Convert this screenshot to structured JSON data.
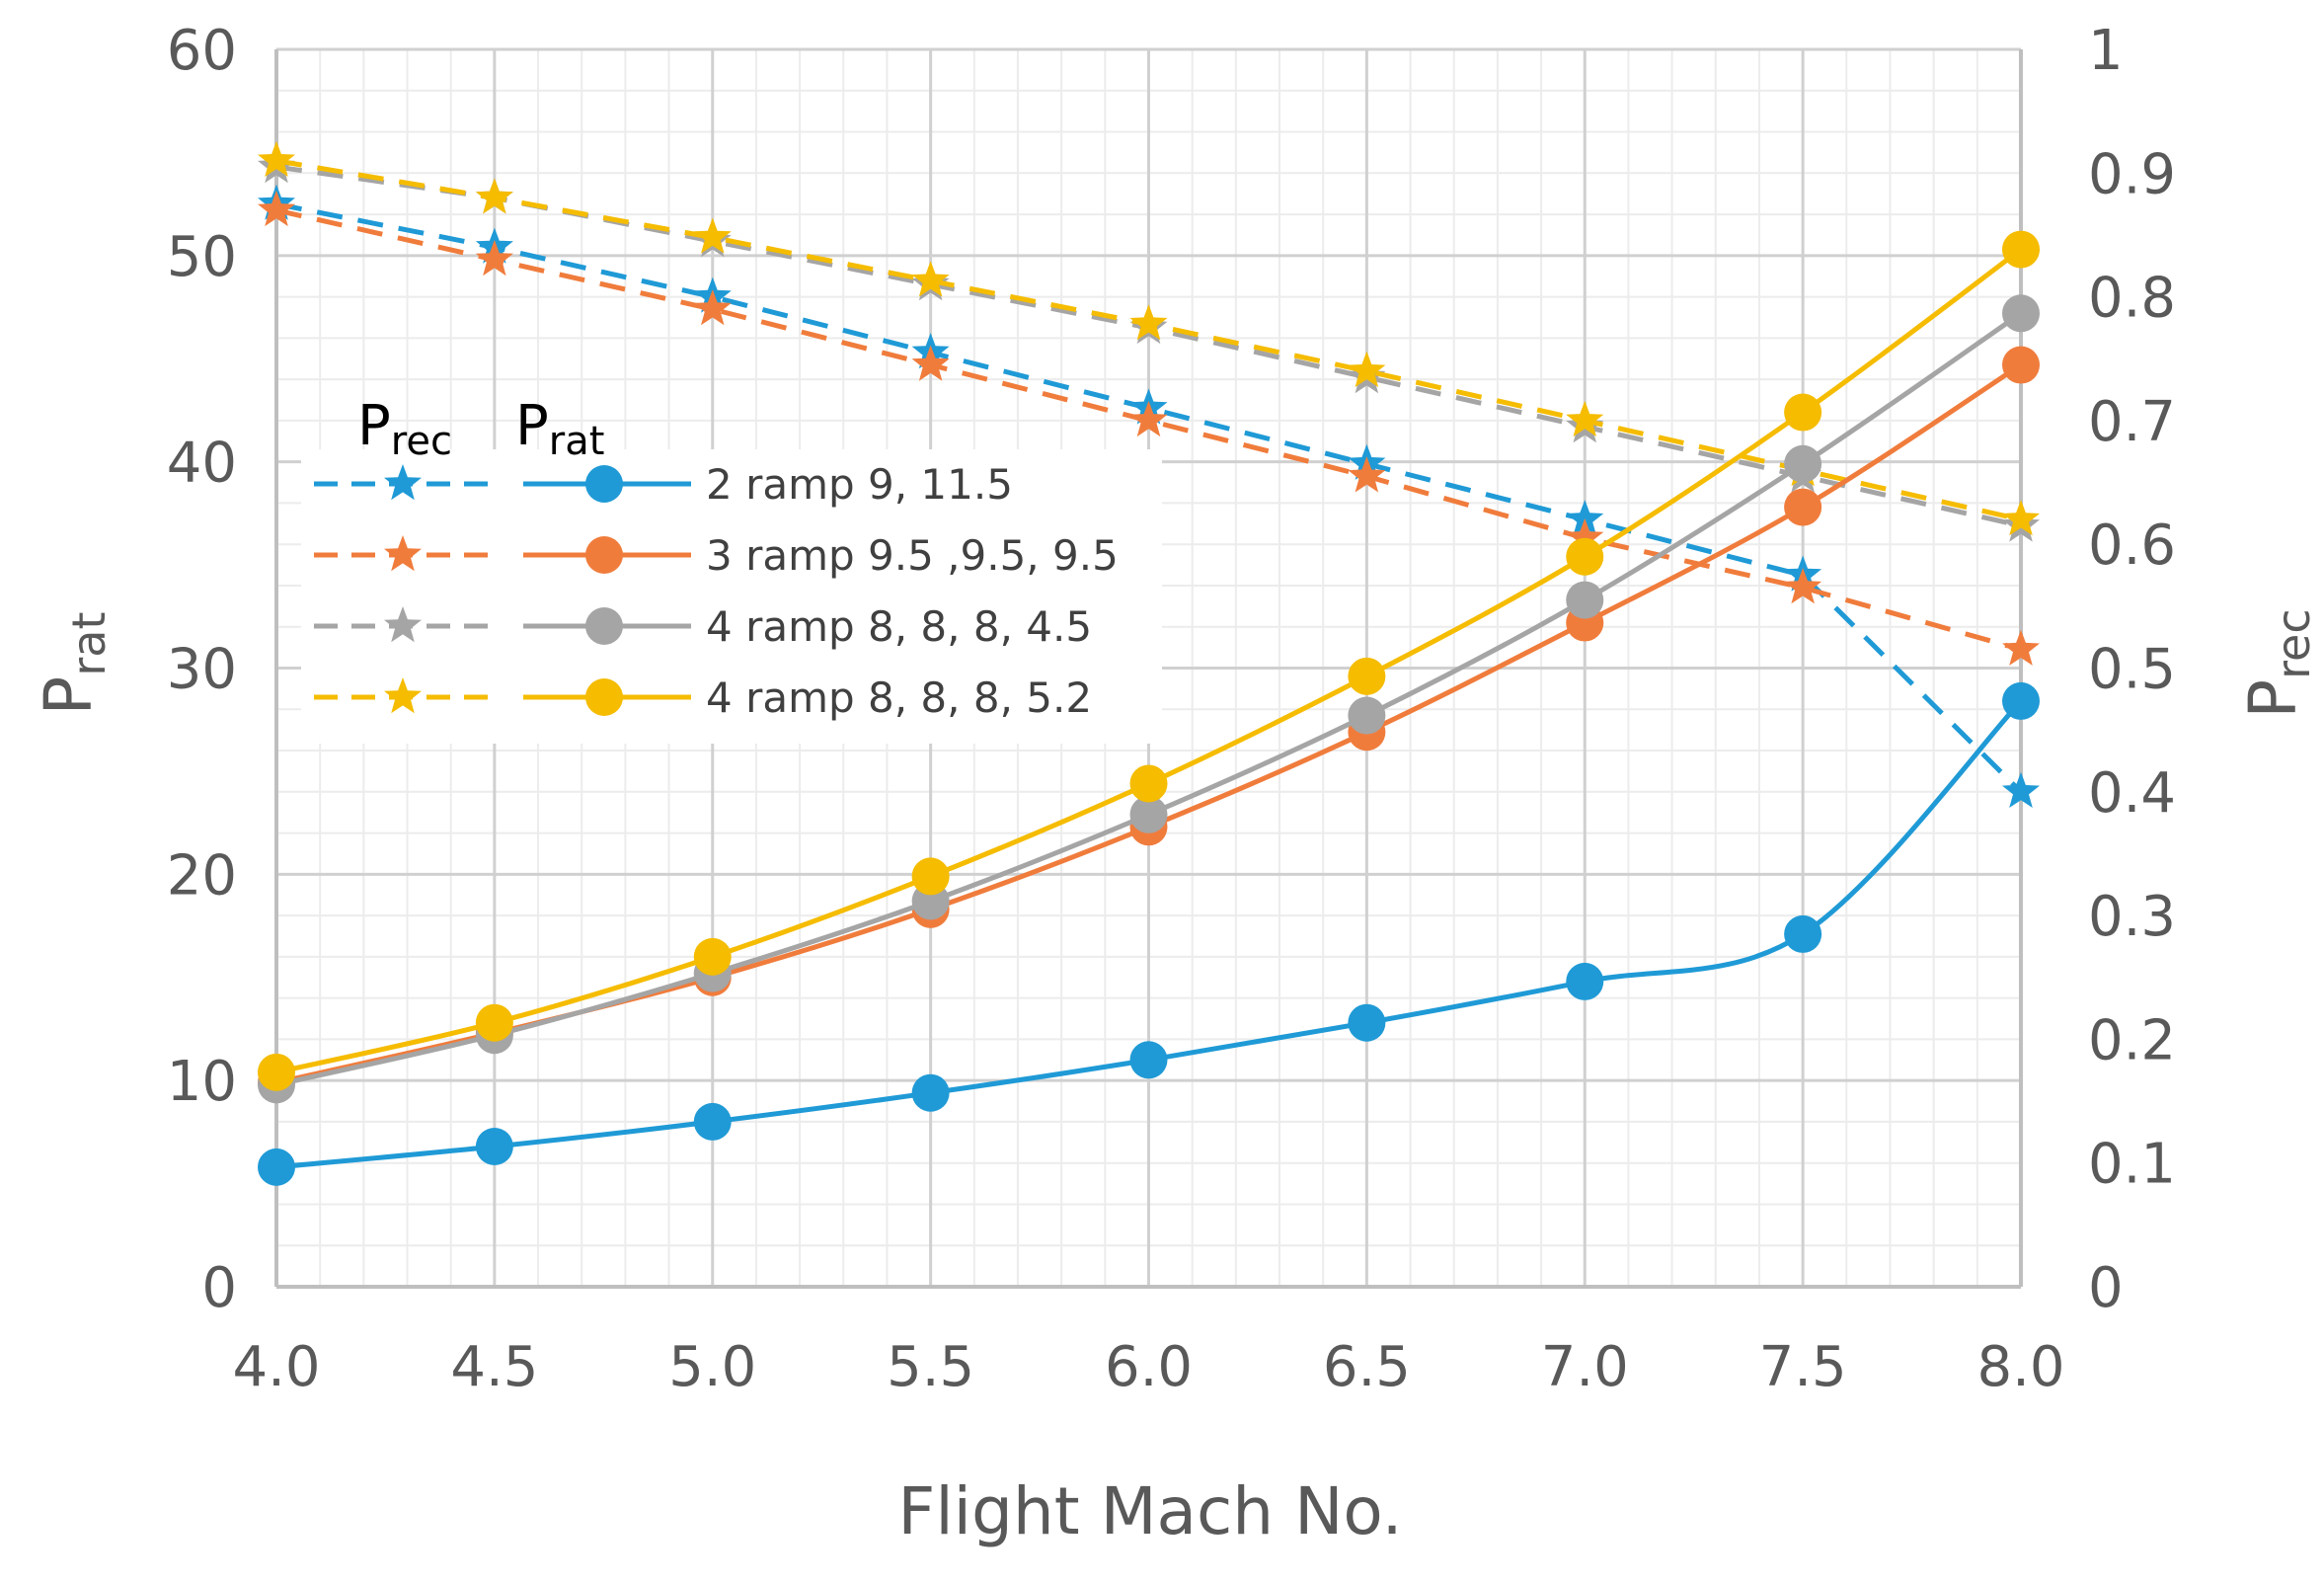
{
  "chart_data": {
    "type": "line",
    "xlabel": "Flight Mach No.",
    "ylabel": {
      "main": "P",
      "sub": "rat"
    },
    "y2label": {
      "main": "P",
      "sub": "rec"
    },
    "x": [
      4.0,
      4.5,
      5.0,
      5.5,
      6.0,
      6.5,
      7.0,
      7.5,
      8.0
    ],
    "xticks": [
      "4.0",
      "4.5",
      "5.0",
      "5.5",
      "6.0",
      "6.5",
      "7.0",
      "7.5",
      "8.0"
    ],
    "xlim": [
      4.0,
      8.0
    ],
    "ylim": [
      0,
      60
    ],
    "yticks": [
      "0",
      "10",
      "20",
      "30",
      "40",
      "50",
      "60"
    ],
    "y2lim": [
      0,
      1
    ],
    "y2ticks": [
      "0",
      "0.1",
      "0.2",
      "0.3",
      "0.4",
      "0.5",
      "0.6",
      "0.7",
      "0.8",
      "0.9",
      "1"
    ],
    "grid": true,
    "legend": {
      "placement": "left-middle",
      "prec_header": {
        "main": "P",
        "sub": "rec"
      },
      "prat_header": {
        "main": "P",
        "sub": "rat"
      },
      "entries": [
        "2 ramp 9, 11.5",
        "3 ramp 9.5 ,9.5, 9.5",
        "4 ramp 8, 8, 8, 4.5",
        "4 ramp 8, 8, 8, 5.2"
      ]
    },
    "series": [
      {
        "name": "2 ramp 9, 11.5",
        "color": "#1f9ad6",
        "prat": [
          5.8,
          6.8,
          8.0,
          9.4,
          11.0,
          12.8,
          14.8,
          17.1,
          28.4
        ],
        "prec": [
          0.875,
          0.84,
          0.8,
          0.755,
          0.71,
          0.665,
          0.62,
          0.575,
          0.4
        ]
      },
      {
        "name": "3 ramp 9.5 ,9.5, 9.5",
        "color": "#f07c3c",
        "prat": [
          9.9,
          12.3,
          15.0,
          18.3,
          22.3,
          26.9,
          32.2,
          37.8,
          44.7
        ],
        "prec": [
          0.87,
          0.83,
          0.79,
          0.745,
          0.7,
          0.655,
          0.605,
          0.565,
          0.515
        ]
      },
      {
        "name": "4 ramp 8, 8, 8, 4.5",
        "color": "#a5a5a5",
        "prat": [
          9.8,
          12.2,
          15.2,
          18.7,
          22.9,
          27.7,
          33.3,
          39.9,
          47.2
        ],
        "prec": [
          0.905,
          0.88,
          0.845,
          0.81,
          0.775,
          0.735,
          0.695,
          0.655,
          0.615
        ]
      },
      {
        "name": "4 ramp 8, 8, 8, 5.2",
        "color": "#f5bc00",
        "prat": [
          10.4,
          12.8,
          16.0,
          19.9,
          24.4,
          29.6,
          35.4,
          42.4,
          50.3
        ],
        "prec": [
          0.91,
          0.88,
          0.848,
          0.813,
          0.778,
          0.74,
          0.7,
          0.66,
          0.62
        ]
      }
    ]
  }
}
